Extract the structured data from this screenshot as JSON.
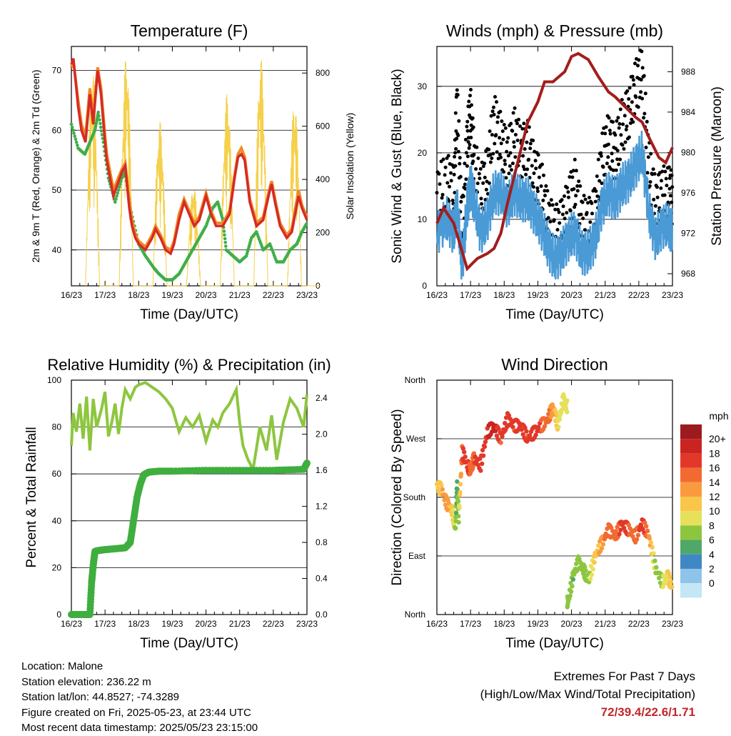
{
  "colors": {
    "temp2m": "#d62a24",
    "temp9m": "#f08a24",
    "dewpoint": "#3fae49",
    "solar": "#f5d04a",
    "gust": "#000000",
    "wind": "#4a9ad6",
    "pressure": "#a31d1d",
    "rh": "#8dc63f",
    "precip": "#3fae3f",
    "extremes": "#c1272d"
  },
  "chart_data": [
    {
      "type": "line",
      "title": "Temperature (F)",
      "xlabel": "Time (Day/UTC)",
      "ylabel": "2m & 9m T (Red, Orange) & 2m Td (Green)",
      "y2label": "Solar Insolation (Yellow)",
      "x_ticks": [
        "16/23",
        "17/23",
        "18/23",
        "19/23",
        "20/23",
        "21/23",
        "22/23",
        "23/23"
      ],
      "ylim": [
        34,
        74
      ],
      "yticks": [
        40,
        50,
        60,
        70
      ],
      "y2lim": [
        0,
        900
      ],
      "y2ticks": [
        0,
        200,
        400,
        600,
        800
      ],
      "grid": true,
      "series": [
        {
          "name": "2m T",
          "role": "temp2m",
          "x": [
            0,
            0.06,
            0.2,
            0.3,
            0.42,
            0.55,
            0.65,
            0.78,
            0.88,
            1.0,
            1.05,
            1.25,
            1.5,
            1.6,
            1.72,
            1.8,
            1.9,
            2.0,
            2.2,
            2.4,
            2.5,
            2.65,
            2.8,
            2.95,
            3.05,
            3.2,
            3.35,
            3.5,
            3.65,
            3.8,
            3.95,
            4.0,
            4.15,
            4.3,
            4.5,
            4.7,
            4.85,
            4.95,
            5.05,
            5.15,
            5.3,
            5.5,
            5.7,
            5.9,
            5.95,
            6.05,
            6.2,
            6.4,
            6.55,
            6.75,
            6.85,
            7.0
          ],
          "y": [
            71,
            72,
            64,
            60,
            58,
            66,
            61,
            70,
            66,
            58,
            55,
            49,
            53,
            54,
            47,
            44,
            42,
            41,
            40,
            42,
            43.5,
            42,
            40,
            39.4,
            41,
            45,
            48,
            46,
            44,
            45,
            48,
            49,
            46,
            44,
            44,
            46,
            52,
            55.5,
            56,
            55,
            48,
            44,
            45,
            50,
            51,
            48,
            44,
            42,
            43,
            49,
            47,
            45
          ]
        },
        {
          "name": "9m T",
          "role": "temp9m",
          "x": [
            0,
            0.06,
            0.2,
            0.3,
            0.42,
            0.55,
            0.65,
            0.78,
            0.88,
            1.0,
            1.05,
            1.25,
            1.5,
            1.6,
            1.72,
            1.8,
            1.9,
            2.0,
            2.2,
            2.4,
            2.5,
            2.65,
            2.8,
            2.95,
            3.05,
            3.2,
            3.35,
            3.5,
            3.65,
            3.8,
            3.95,
            4.0,
            4.15,
            4.3,
            4.5,
            4.7,
            4.85,
            4.95,
            5.05,
            5.15,
            5.3,
            5.5,
            5.7,
            5.9,
            5.95,
            6.05,
            6.2,
            6.4,
            6.55,
            6.75,
            6.85,
            7.0
          ],
          "y": [
            70.5,
            71.5,
            65,
            61,
            59,
            67,
            62,
            70.5,
            67,
            59,
            56,
            50,
            53.5,
            54.5,
            48,
            45,
            42.5,
            41.5,
            40.5,
            42.5,
            44,
            42.5,
            40.5,
            40,
            41.5,
            46,
            48.5,
            46.5,
            44.5,
            45.5,
            48.5,
            49.5,
            46.5,
            44.5,
            44.5,
            46.5,
            52.5,
            56,
            57,
            55.5,
            48.5,
            44.5,
            45.5,
            50.5,
            51.5,
            48.5,
            44.5,
            42.5,
            43.5,
            50,
            47.5,
            45.5
          ]
        },
        {
          "name": "2m Td",
          "role": "dewpoint",
          "x": [
            0,
            0.2,
            0.4,
            0.55,
            0.7,
            0.8,
            0.95,
            1.1,
            1.3,
            1.5,
            1.6,
            1.75,
            2.0,
            2.2,
            2.45,
            2.6,
            2.8,
            3.0,
            3.2,
            3.4,
            3.6,
            3.8,
            4.0,
            4.2,
            4.35,
            4.5,
            4.6,
            4.8,
            5.0,
            5.2,
            5.35,
            5.5,
            5.7,
            5.9,
            6.1,
            6.3,
            6.5,
            6.7,
            6.85,
            7.0
          ],
          "y": [
            61,
            57,
            56,
            58,
            60,
            63,
            58,
            52,
            48,
            52,
            53,
            47,
            41,
            39,
            37,
            36,
            35,
            35,
            36,
            38,
            40,
            42,
            44,
            47,
            48,
            45,
            40,
            39,
            38,
            39,
            42,
            43,
            40,
            41,
            38,
            38,
            40,
            41,
            43,
            44.5
          ]
        }
      ],
      "solar_series": {
        "name": "Solar Insolation",
        "role": "solar",
        "days": [
          0,
          1,
          2,
          3,
          4,
          5,
          6
        ],
        "peak": [
          820,
          870,
          620,
          380,
          730,
          860,
          700
        ]
      }
    },
    {
      "type": "line",
      "title": "Winds (mph) & Pressure (mb)",
      "xlabel": "Time (Day/UTC)",
      "ylabel": "Sonic Wind & Gust (Blue, Black)",
      "y2label": "Station Pressure (Maroon)",
      "x_ticks": [
        "16/23",
        "17/23",
        "18/23",
        "19/23",
        "20/23",
        "21/23",
        "22/23",
        "23/23"
      ],
      "ylim": [
        0,
        36
      ],
      "yticks": [
        0,
        10,
        20,
        30
      ],
      "y2lim": [
        966.8,
        990.5
      ],
      "y2ticks": [
        968,
        972,
        976,
        980,
        984,
        988
      ],
      "grid": true,
      "series": [
        {
          "name": "Gust",
          "role": "gust",
          "x": [
            0,
            0.3,
            0.5,
            0.6,
            0.75,
            0.9,
            1.0,
            1.1,
            1.3,
            1.5,
            1.7,
            1.9,
            2.1,
            2.3,
            2.5,
            2.7,
            2.9,
            3.1,
            3.3,
            3.5,
            3.7,
            3.9,
            4.1,
            4.3,
            4.5,
            4.7,
            4.9,
            5.1,
            5.3,
            5.5,
            5.7,
            5.9,
            6.1,
            6.3,
            6.5,
            6.7,
            6.9,
            7.0
          ],
          "y": [
            14,
            16,
            14,
            28,
            8,
            22,
            26,
            19,
            14,
            17,
            25,
            22,
            19,
            23,
            20,
            21,
            17,
            15,
            10,
            8,
            9,
            12,
            15,
            10,
            9,
            11,
            19,
            22,
            20,
            24,
            26,
            30,
            32,
            18,
            12,
            14,
            14,
            13
          ]
        },
        {
          "name": "Wind",
          "role": "wind",
          "x": [
            0,
            0.3,
            0.5,
            0.6,
            0.75,
            0.9,
            1.0,
            1.1,
            1.3,
            1.5,
            1.7,
            1.9,
            2.1,
            2.3,
            2.5,
            2.7,
            2.9,
            3.1,
            3.3,
            3.5,
            3.7,
            3.9,
            4.1,
            4.3,
            4.5,
            4.7,
            4.9,
            5.1,
            5.3,
            5.5,
            5.7,
            5.9,
            6.1,
            6.3,
            6.5,
            6.7,
            6.9,
            7.0
          ],
          "y": [
            8,
            10,
            8,
            12,
            3,
            12,
            15,
            13,
            8,
            10,
            14,
            14,
            12,
            14,
            13,
            13,
            11,
            9,
            6,
            4,
            5,
            7,
            8,
            5,
            5,
            7,
            12,
            14,
            13,
            15,
            16,
            18,
            20,
            11,
            7,
            9,
            9,
            8
          ]
        },
        {
          "name": "Pressure",
          "role": "pressure",
          "x": [
            0,
            0.2,
            0.5,
            0.9,
            1.2,
            1.5,
            1.7,
            1.9,
            2.1,
            2.4,
            2.7,
            3.0,
            3.2,
            3.45,
            3.8,
            4.0,
            4.2,
            4.5,
            4.8,
            5.1,
            5.3,
            5.6,
            5.9,
            6.1,
            6.3,
            6.6,
            6.8,
            7.0
          ],
          "y": [
            973,
            974.5,
            973,
            968.5,
            969.5,
            970,
            970.5,
            972,
            975,
            979,
            983,
            985,
            987,
            987,
            988,
            989.5,
            989.8,
            989.2,
            987.5,
            986,
            985.5,
            984.5,
            983.5,
            983,
            981.5,
            979.5,
            979,
            980.5
          ]
        }
      ]
    },
    {
      "type": "line",
      "title": "Relative Humidity (%) & Precipitation (in)",
      "xlabel": "Time (Day/UTC)",
      "ylabel": "Percent & Total Rainfall",
      "x_ticks": [
        "16/23",
        "17/23",
        "18/23",
        "19/23",
        "20/23",
        "21/23",
        "22/23",
        "23/23"
      ],
      "ylim": [
        0,
        100
      ],
      "yticks": [
        0,
        20,
        40,
        60,
        80,
        100
      ],
      "y2lim": [
        0,
        2.6
      ],
      "y2ticks": [
        0.0,
        0.4,
        0.8,
        1.2,
        1.6,
        2.0,
        2.4
      ],
      "grid": true,
      "series": [
        {
          "name": "Relative Humidity",
          "role": "rh",
          "x": [
            0,
            0.05,
            0.15,
            0.25,
            0.35,
            0.45,
            0.55,
            0.65,
            0.75,
            0.9,
            1.0,
            1.1,
            1.2,
            1.3,
            1.4,
            1.5,
            1.6,
            1.75,
            1.9,
            2.0,
            2.2,
            2.4,
            2.6,
            2.8,
            3.0,
            3.2,
            3.4,
            3.6,
            3.8,
            4.0,
            4.2,
            4.35,
            4.5,
            4.7,
            4.9,
            5.0,
            5.1,
            5.25,
            5.4,
            5.6,
            5.8,
            5.95,
            6.1,
            6.3,
            6.5,
            6.7,
            6.9,
            7.0
          ],
          "y": [
            72,
            86,
            78,
            90,
            75,
            93,
            70,
            92,
            80,
            88,
            95,
            76,
            82,
            90,
            77,
            88,
            96,
            92,
            97,
            98,
            99,
            97,
            95,
            92,
            88,
            78,
            84,
            80,
            85,
            74,
            83,
            80,
            86,
            90,
            96,
            82,
            72,
            66,
            62,
            80,
            70,
            85,
            66,
            82,
            92,
            88,
            80,
            94
          ]
        },
        {
          "name": "Total Precipitation",
          "role": "precip",
          "x": [
            0,
            0.35,
            0.55,
            0.6,
            0.65,
            0.7,
            0.8,
            1.0,
            1.3,
            1.6,
            1.75,
            1.85,
            1.95,
            2.05,
            2.15,
            2.3,
            2.6,
            3.0,
            4.0,
            5.0,
            6.0,
            6.9,
            7.0
          ],
          "y": [
            0.0,
            0.0,
            0.0,
            0.35,
            0.55,
            0.7,
            0.71,
            0.72,
            0.73,
            0.74,
            0.8,
            1.05,
            1.3,
            1.45,
            1.55,
            1.58,
            1.59,
            1.59,
            1.6,
            1.6,
            1.6,
            1.61,
            1.68
          ]
        }
      ]
    },
    {
      "type": "scatter",
      "title": "Wind Direction",
      "xlabel": "Time (Day/UTC)",
      "ylabel": "Direction (Colored By Speed)",
      "x_ticks": [
        "16/23",
        "17/23",
        "18/23",
        "19/23",
        "20/23",
        "21/23",
        "22/23",
        "23/23"
      ],
      "ylim": [
        0,
        360
      ],
      "yticks": [
        0,
        90,
        180,
        270,
        360
      ],
      "ytick_labels": [
        "North",
        "East",
        "South",
        "West",
        "North"
      ],
      "grid": true,
      "colorbar": {
        "title": "mph",
        "labels": [
          "20+",
          "18",
          "16",
          "14",
          "12",
          "10",
          "8",
          "6",
          "4",
          "2",
          "0"
        ],
        "colors": [
          "#9b1b1f",
          "#c9241f",
          "#e2382a",
          "#f26a30",
          "#f99a3f",
          "#f9c64a",
          "#e6e05a",
          "#8cc63f",
          "#4fa869",
          "#3f88c5",
          "#8ec3ea",
          "#c4e6f6"
        ]
      },
      "series": [
        {
          "name": "Direction",
          "x": [
            0,
            0.15,
            0.3,
            0.45,
            0.55,
            0.6,
            0.65,
            0.75,
            0.9,
            1.0,
            1.1,
            1.3,
            1.5,
            1.7,
            1.9,
            2.1,
            2.3,
            2.5,
            2.7,
            2.9,
            3.1,
            3.3,
            3.45,
            3.6,
            3.75,
            3.85,
            3.9,
            4.05,
            4.2,
            4.35,
            4.5,
            4.7,
            4.9,
            5.1,
            5.3,
            5.5,
            5.7,
            5.9,
            6.1,
            6.3,
            6.5,
            6.7,
            6.85,
            7.0
          ],
          "y": [
            200,
            190,
            170,
            160,
            130,
            200,
            150,
            250,
            230,
            220,
            240,
            230,
            280,
            290,
            270,
            300,
            290,
            290,
            270,
            280,
            290,
            300,
            320,
            290,
            330,
            320,
            20,
            60,
            80,
            70,
            50,
            90,
            110,
            130,
            120,
            140,
            130,
            120,
            140,
            120,
            70,
            50,
            60,
            40
          ],
          "speed": [
            9,
            11,
            13,
            10,
            6,
            4,
            7,
            15,
            17,
            14,
            15,
            16,
            17,
            18,
            15,
            16,
            15,
            17,
            15,
            16,
            15,
            14,
            12,
            9,
            8,
            8,
            6,
            5,
            6,
            7,
            6,
            10,
            12,
            15,
            14,
            16,
            15,
            14,
            16,
            13,
            6,
            7,
            9,
            10
          ]
        }
      ]
    }
  ],
  "footer": {
    "location": "Location: Malone",
    "elevation": "Station elevation: 236.22 m",
    "latlon": "Station lat/lon: 44.8527; -74.3289",
    "created": "Figure created on Fri, 2025-05-23, at 23:44 UTC",
    "recent": "Most recent data timestamp: 2025/05/23 23:15:00"
  },
  "extremes": {
    "title": "Extremes For Past 7 Days",
    "subtitle": "(High/Low/Max Wind/Total Precipitation)",
    "values": "72/39.4/22.6/1.71"
  }
}
